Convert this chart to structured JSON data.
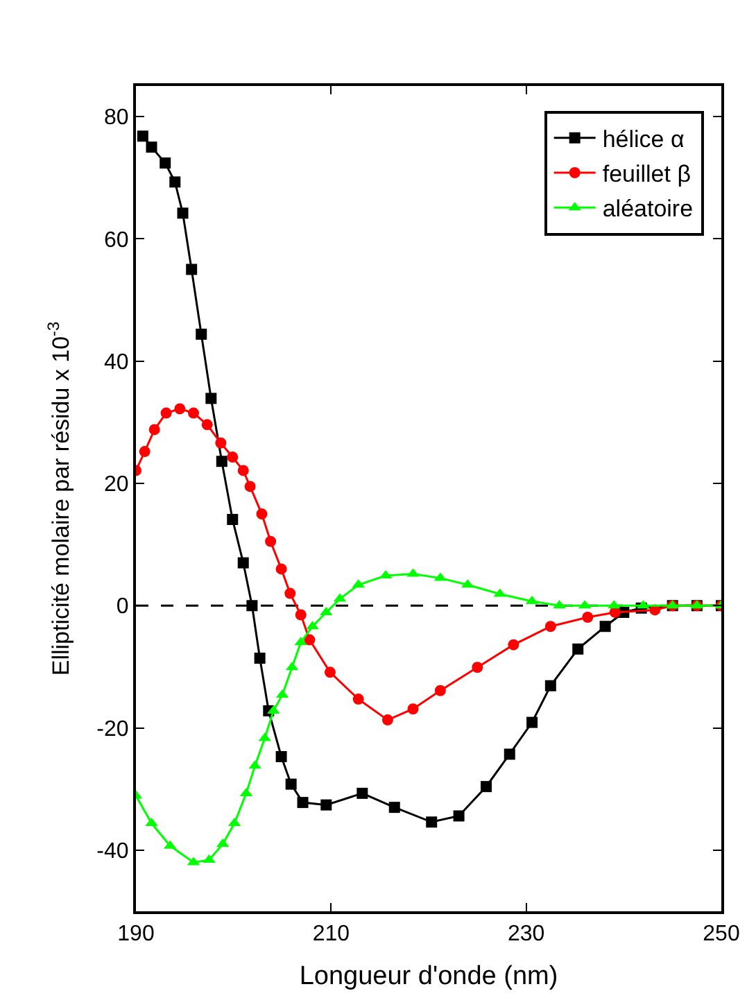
{
  "chart_data": {
    "type": "line",
    "xlabel": "Longueur d'onde (nm)",
    "ylabel": "Ellipticité molaire par résidu x 10$^{-3}$",
    "xlim": [
      190,
      250
    ],
    "xticks": [
      190,
      210,
      230,
      250
    ],
    "ylim": [
      -50,
      85
    ],
    "yticks": [
      -40,
      -20,
      0,
      20,
      40,
      60,
      80
    ],
    "grid": false,
    "legend": "top right",
    "ref_lines": [
      {
        "axis": "y",
        "value": 0,
        "color": "#000000",
        "line_style": "dashed"
      }
    ],
    "series": [
      {
        "name": "hélice α",
        "color": "#000000",
        "marker": "square",
        "x": [
          190.7,
          191.6,
          193,
          194,
          194.8,
          195.7,
          196.7,
          197.7,
          198.8,
          199.9,
          201,
          201.9,
          202.7,
          203.6,
          204.9,
          205.9,
          207.1,
          209.5,
          213.2,
          216.5,
          220.3,
          223.1,
          225.9,
          228.3,
          230.6,
          232.5,
          235.3,
          238.1,
          240,
          241.8,
          245,
          247.5,
          250
        ],
        "values": [
          76.8,
          75,
          72.4,
          69.3,
          64.2,
          55,
          44.4,
          33.9,
          23.6,
          14.1,
          7,
          0,
          -8.6,
          -17.2,
          -24.7,
          -29.2,
          -32.2,
          -32.6,
          -30.7,
          -33,
          -35.4,
          -34.4,
          -29.6,
          -24.3,
          -19.1,
          -13.1,
          -7.1,
          -3.4,
          -1.1,
          -0.4,
          0,
          0,
          0
        ]
      },
      {
        "name": "feuillet β",
        "color": "#ff0000",
        "marker": "circle",
        "x": [
          190,
          190.9,
          191.9,
          193.1,
          194.5,
          195.9,
          197.3,
          198.7,
          199.9,
          201,
          201.7,
          202.9,
          203.8,
          204.9,
          205.8,
          206.9,
          207.8,
          209.9,
          212.8,
          215.8,
          218.4,
          221.2,
          225,
          228.7,
          232.5,
          236.3,
          239.1,
          243.2,
          245,
          247.5,
          250
        ],
        "values": [
          22.1,
          25.2,
          28.8,
          31.5,
          32.2,
          31.5,
          29.6,
          26.6,
          24.3,
          22.1,
          19.5,
          15,
          10.5,
          6,
          2,
          -1.5,
          -5.6,
          -10.9,
          -15.3,
          -18.7,
          -16.9,
          -13.9,
          -10.1,
          -6.4,
          -3.4,
          -1.9,
          -1.1,
          -0.7,
          0,
          0,
          0
        ]
      },
      {
        "name": "aléatoire",
        "color": "#00ff00",
        "marker": "triangle",
        "x": [
          190,
          191.6,
          193.5,
          195.9,
          197.5,
          198.9,
          200.1,
          201.3,
          202.2,
          203.2,
          204.1,
          205,
          206,
          206.9,
          208.1,
          209.5,
          210.9,
          212.8,
          215.6,
          218.4,
          221.2,
          224,
          227.3,
          230.6,
          233.4,
          236,
          239,
          242,
          245,
          247.5,
          250
        ],
        "values": [
          -31.1,
          -35.6,
          -39.3,
          -42,
          -41.6,
          -39,
          -35.6,
          -30.7,
          -26.2,
          -21.7,
          -17.2,
          -14.6,
          -10.1,
          -6,
          -3.4,
          -1.1,
          1.1,
          3.4,
          4.9,
          5.2,
          4.5,
          3.4,
          1.9,
          0.7,
          0,
          0,
          0,
          0,
          0,
          0,
          0
        ]
      }
    ]
  }
}
